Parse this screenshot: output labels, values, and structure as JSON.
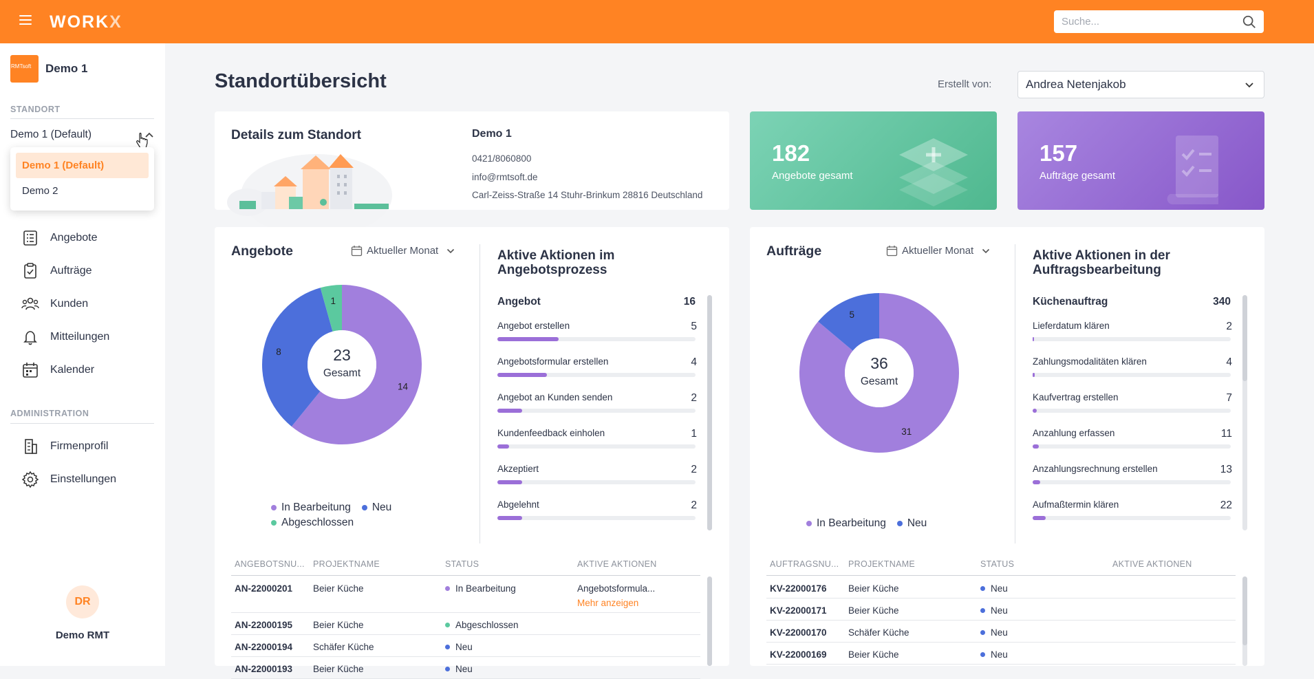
{
  "colors": {
    "accent": "#ff8323",
    "in_bearbeitung": "#a17fdd",
    "neu": "#4c6fdb",
    "abgeschlossen": "#5bc99f",
    "green_card": "#5bbf9a",
    "purple_card": "#9a6fd3"
  },
  "header": {
    "logo": "WORK",
    "logo_x": "X",
    "search_placeholder": "Suche..."
  },
  "sidebar": {
    "company_name": "Demo 1",
    "company_logo_text": "RMTsoft",
    "standort_label": "STANDORT",
    "standort_value": "Demo 1 (Default)",
    "dropdown_options": [
      "Demo 1 (Default)",
      "Demo 2"
    ],
    "nav_items": [
      "Angebote",
      "Aufträge",
      "Kunden",
      "Mitteilungen",
      "Kalender"
    ],
    "admin_label": "ADMINISTRATION",
    "admin_items": [
      "Firmenprofil",
      "Einstellungen"
    ],
    "user_initials": "DR",
    "user_name": "Demo RMT"
  },
  "main": {
    "title": "Standortübersicht",
    "creator_label": "Erstellt von:",
    "creator_value": "Andrea Netenjakob",
    "details": {
      "title": "Details zum Standort",
      "name": "Demo 1",
      "phone": "0421/8060800",
      "email": "info@rmtsoft.de",
      "address": "Carl-Zeiss-Straße 14 Stuhr-Brinkum 28816 Deutschland"
    },
    "stats": [
      {
        "value": "182",
        "label": "Angebote gesamt"
      },
      {
        "value": "157",
        "label": "Aufträge gesamt"
      }
    ]
  },
  "angebote_panel": {
    "title": "Angebote",
    "period": "Aktueller Monat",
    "center_value": "23",
    "center_label": "Gesamt",
    "legend": [
      "In Bearbeitung",
      "Neu",
      "Abgeschlossen"
    ],
    "actions_title": "Aktive Aktionen im Angebotsprozess",
    "group": {
      "name": "Angebot",
      "value": "16"
    },
    "actions": [
      {
        "name": "Angebot erstellen",
        "value": "5",
        "fill": 0.31
      },
      {
        "name": "Angebotsformular erstellen",
        "value": "4",
        "fill": 0.25
      },
      {
        "name": "Angebot an Kunden senden",
        "value": "2",
        "fill": 0.125
      },
      {
        "name": "Kundenfeedback einholen",
        "value": "1",
        "fill": 0.06
      },
      {
        "name": "Akzeptiert",
        "value": "2",
        "fill": 0.125
      },
      {
        "name": "Abgelehnt",
        "value": "2",
        "fill": 0.125
      }
    ],
    "table": {
      "headers": [
        "ANGEBOTSNU...",
        "PROJEKTNAME",
        "STATUS",
        "AKTIVE AKTIONEN"
      ],
      "rows": [
        {
          "nr": "AN-22000201",
          "projekt": "Beier Küche",
          "status": "In Bearbeitung",
          "aktion": "Angebotsformula...",
          "more": "Mehr anzeigen"
        },
        {
          "nr": "AN-22000195",
          "projekt": "Beier Küche",
          "status": "Abgeschlossen",
          "aktion": "",
          "more": ""
        },
        {
          "nr": "AN-22000194",
          "projekt": "Schäfer Küche",
          "status": "Neu",
          "aktion": "",
          "more": ""
        },
        {
          "nr": "AN-22000193",
          "projekt": "Beier Küche",
          "status": "Neu",
          "aktion": "",
          "more": ""
        }
      ]
    }
  },
  "auftraege_panel": {
    "title": "Aufträge",
    "period": "Aktueller Monat",
    "center_value": "36",
    "center_label": "Gesamt",
    "legend": [
      "In Bearbeitung",
      "Neu"
    ],
    "actions_title": "Aktive Aktionen in der Auftragsbearbeitung",
    "group": {
      "name": "Küchenauftrag",
      "value": "340"
    },
    "actions": [
      {
        "name": "Lieferdatum klären",
        "value": "2",
        "fill": 0.006
      },
      {
        "name": "Zahlungsmodalitäten klären",
        "value": "4",
        "fill": 0.012
      },
      {
        "name": "Kaufvertrag erstellen",
        "value": "7",
        "fill": 0.02
      },
      {
        "name": "Anzahlung erfassen",
        "value": "11",
        "fill": 0.032
      },
      {
        "name": "Anzahlungsrechnung erstellen",
        "value": "13",
        "fill": 0.038
      },
      {
        "name": "Aufmaßtermin klären",
        "value": "22",
        "fill": 0.065
      }
    ],
    "table": {
      "headers": [
        "AUFTRAGSNU...",
        "PROJEKTNAME",
        "STATUS",
        "AKTIVE AKTIONEN"
      ],
      "rows": [
        {
          "nr": "KV-22000176",
          "projekt": "Beier Küche",
          "status": "Neu"
        },
        {
          "nr": "KV-22000171",
          "projekt": "Beier Küche",
          "status": "Neu"
        },
        {
          "nr": "KV-22000170",
          "projekt": "Schäfer Küche",
          "status": "Neu"
        },
        {
          "nr": "KV-22000169",
          "projekt": "Beier Küche",
          "status": "Neu"
        }
      ]
    }
  },
  "chart_data": [
    {
      "type": "pie",
      "categories": [
        "In Bearbeitung",
        "Neu",
        "Abgeschlossen"
      ],
      "values": [
        14,
        8,
        1
      ],
      "total": 23
    },
    {
      "type": "pie",
      "categories": [
        "In Bearbeitung",
        "Neu"
      ],
      "values": [
        31,
        5
      ],
      "total": 36
    }
  ]
}
